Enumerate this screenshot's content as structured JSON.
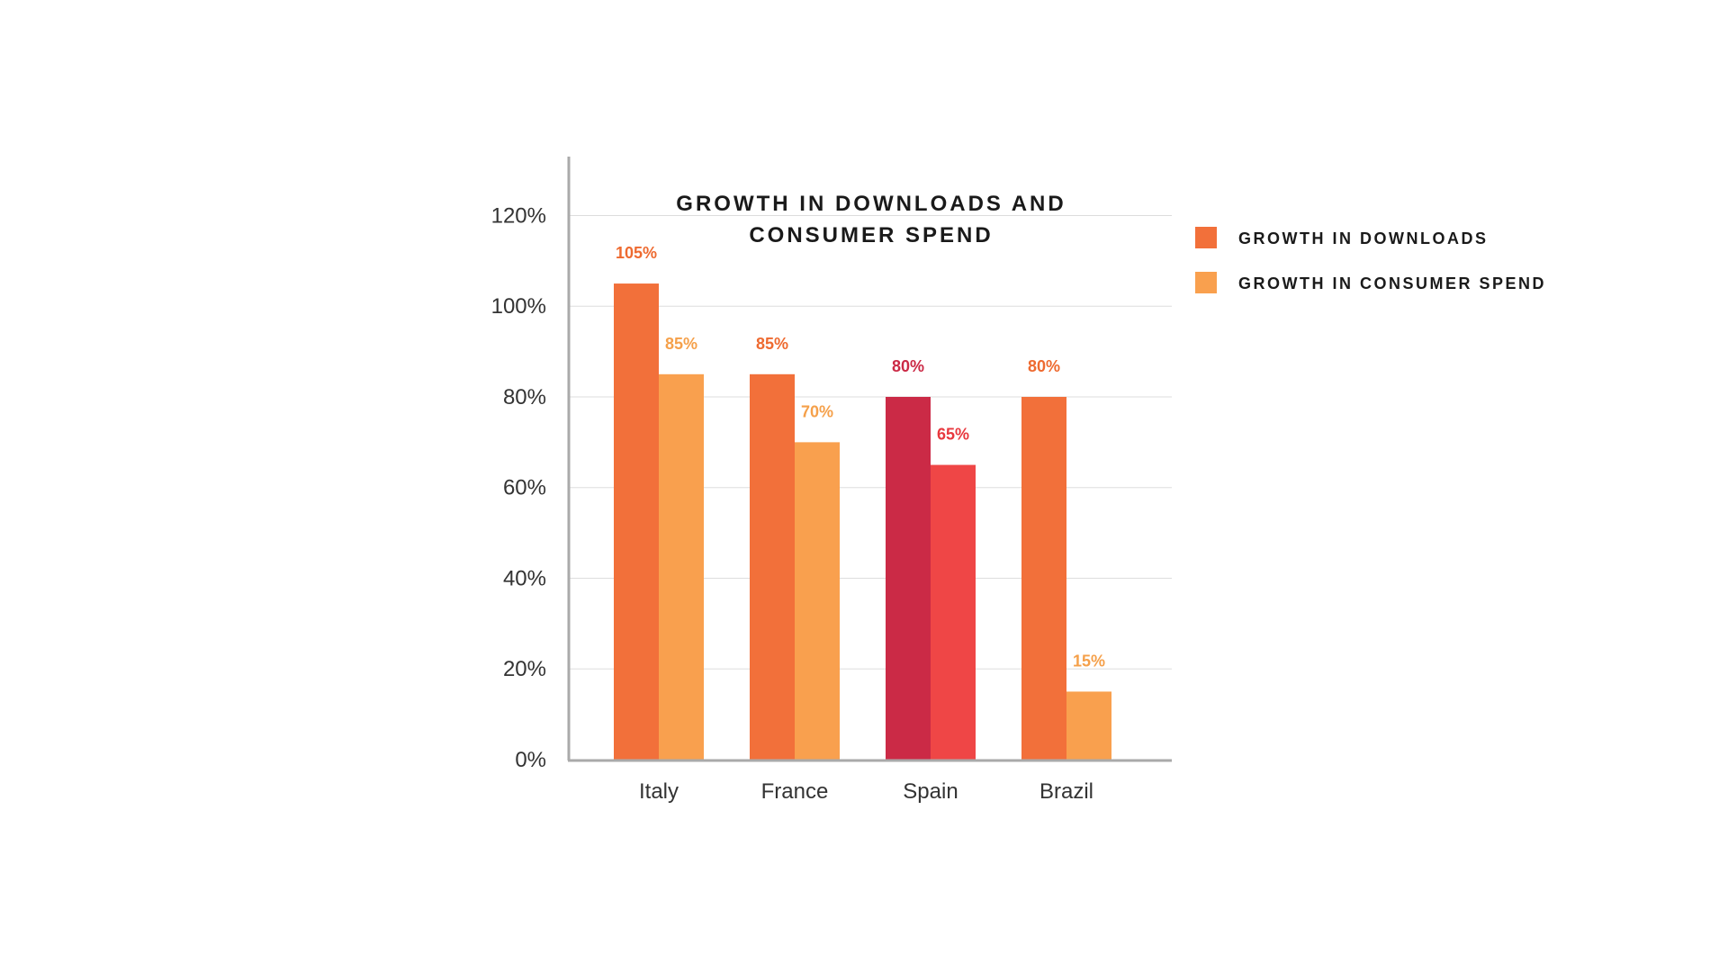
{
  "chart_data": {
    "type": "bar",
    "title_lines": [
      "GROWTH IN DOWNLOADS AND",
      "CONSUMER SPEND"
    ],
    "categories": [
      "Italy",
      "France",
      "Spain",
      "Brazil"
    ],
    "series": [
      {
        "name": "GROWTH IN DOWNLOADS",
        "color": "#F2703A",
        "values": [
          105,
          85,
          80,
          80
        ],
        "labels": [
          "105%",
          "85%",
          "80%",
          "80%"
        ]
      },
      {
        "name": "GROWTH IN CONSUMER SPEND",
        "color": "#F9A04E",
        "values": [
          85,
          70,
          65,
          15
        ],
        "labels": [
          "85%",
          "70%",
          "65%",
          "15%"
        ]
      }
    ],
    "highlight": {
      "category": "Spain",
      "colors": [
        "#CB2A46",
        "#EF4646"
      ]
    },
    "label_colors": {
      "downloads": "#EE6A30",
      "spend": "#F5A04A",
      "highlight_downloads": "#CB2A46",
      "highlight_spend": "#E8383E"
    },
    "y_ticks": [
      {
        "value": 0,
        "label": "0%"
      },
      {
        "value": 20,
        "label": "20%"
      },
      {
        "value": 40,
        "label": "40%"
      },
      {
        "value": 60,
        "label": "60%"
      },
      {
        "value": 80,
        "label": "80%"
      },
      {
        "value": 100,
        "label": "100%"
      },
      {
        "value": 120,
        "label": "120%"
      }
    ],
    "ylim": [
      0,
      133
    ],
    "grid": true,
    "legend_position": "right"
  }
}
